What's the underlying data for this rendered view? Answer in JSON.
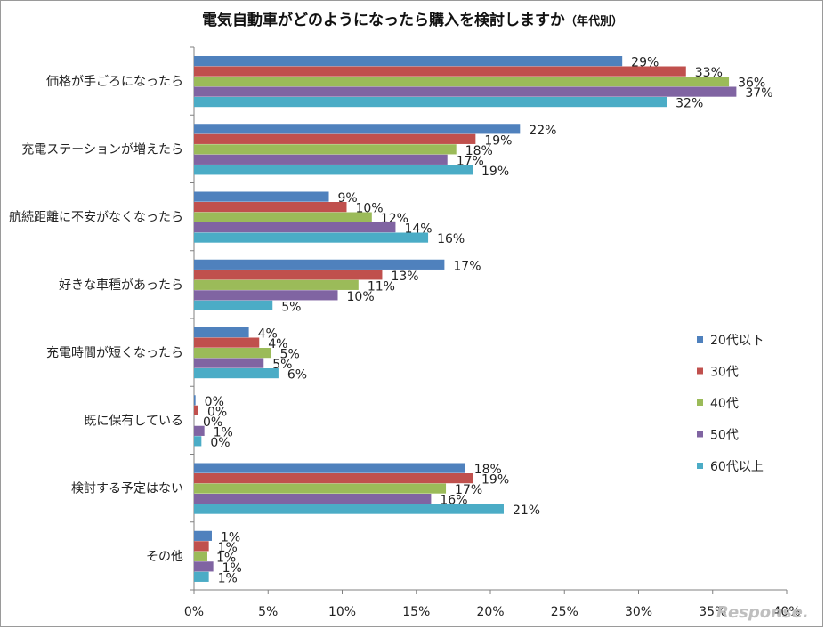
{
  "title": "電気自動車がどのようになったら購入を検討しますか",
  "subtitle": "（年代別）",
  "watermark": "Response.",
  "chart_data": {
    "type": "bar",
    "orientation": "horizontal",
    "title": "電気自動車がどのようになったら購入を検討しますか（年代別）",
    "categories": [
      "価格が手ごろになったら",
      "充電ステーションが増えたら",
      "航続距離に不安がなくなったら",
      "好きな車種があったら",
      "充電時間が短くなったら",
      "既に保有している",
      "検討する予定はない",
      "その他"
    ],
    "series": [
      {
        "name": "20代以下",
        "color": "#4f81bd",
        "values": [
          29,
          22,
          9,
          17,
          4,
          0,
          18,
          1
        ]
      },
      {
        "name": "30代",
        "color": "#c0504d",
        "values": [
          33,
          19,
          10,
          13,
          4,
          0,
          19,
          1
        ]
      },
      {
        "name": "40代",
        "color": "#9bbb59",
        "values": [
          36,
          18,
          12,
          11,
          5,
          0,
          17,
          1
        ]
      },
      {
        "name": "50代",
        "color": "#8064a2",
        "values": [
          37,
          17,
          14,
          10,
          5,
          1,
          16,
          1
        ]
      },
      {
        "name": "60代以上",
        "color": "#4bacc6",
        "values": [
          32,
          19,
          16,
          5,
          6,
          0,
          21,
          1
        ]
      }
    ],
    "bar_values_precise": [
      [
        28.9,
        22.0,
        9.1,
        16.9,
        3.7,
        0.1,
        18.3,
        1.2
      ],
      [
        33.2,
        19.0,
        10.3,
        12.7,
        4.4,
        0.3,
        18.8,
        1.0
      ],
      [
        36.1,
        17.7,
        12.0,
        11.1,
        5.2,
        0.0,
        17.0,
        0.9
      ],
      [
        36.6,
        17.1,
        13.6,
        9.7,
        4.7,
        0.7,
        16.0,
        1.3
      ],
      [
        31.9,
        18.8,
        15.8,
        5.3,
        5.7,
        0.5,
        20.9,
        1.0
      ]
    ],
    "x_ticks": [
      "0%",
      "5%",
      "10%",
      "15%",
      "20%",
      "25%",
      "30%",
      "35%",
      "40%"
    ],
    "xlim": [
      0,
      40
    ],
    "xlabel": "",
    "ylabel": "",
    "grid": false,
    "legend_position": "right"
  }
}
